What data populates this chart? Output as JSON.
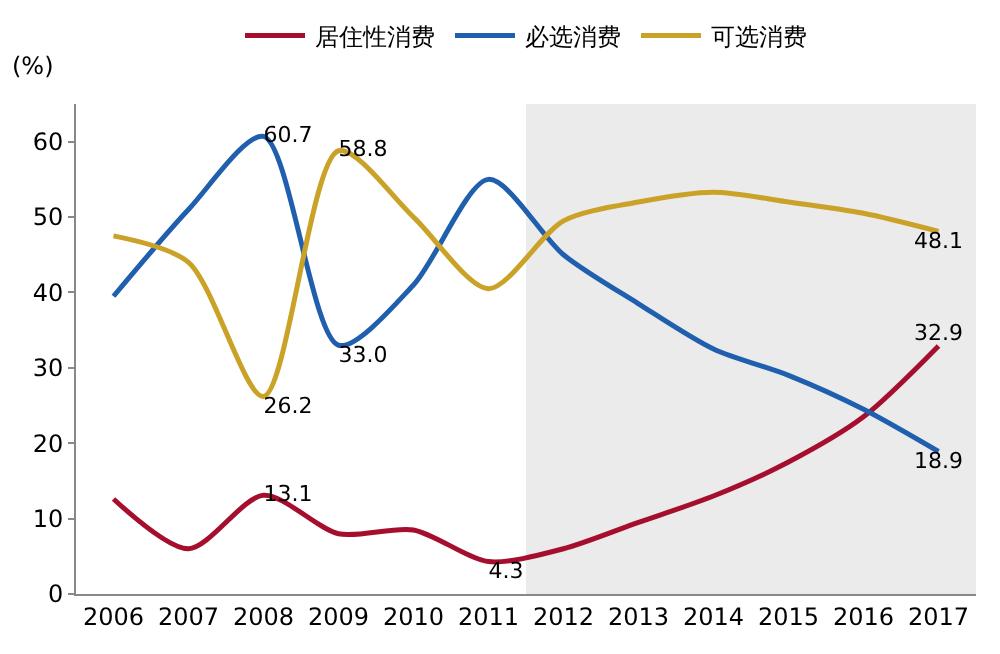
{
  "chart_data": {
    "type": "line",
    "ylabel": "(%)",
    "categories": [
      "2006",
      "2007",
      "2008",
      "2009",
      "2010",
      "2011",
      "2012",
      "2013",
      "2014",
      "2015",
      "2016",
      "2017"
    ],
    "series": [
      {
        "name": "居住性消费",
        "color": "#a50f2d",
        "values": [
          12.6,
          6.0,
          13.1,
          8.0,
          8.5,
          4.3,
          6.0,
          9.5,
          13.0,
          17.5,
          23.5,
          32.9
        ],
        "value_labels": [
          null,
          null,
          "13.1",
          null,
          null,
          "4.3",
          null,
          null,
          null,
          null,
          null,
          "32.9"
        ]
      },
      {
        "name": "必选消费",
        "color": "#1f5fad",
        "values": [
          39.5,
          51,
          60.7,
          33.0,
          41,
          55,
          45,
          38.5,
          32.5,
          29,
          24.5,
          18.9
        ],
        "value_labels": [
          null,
          null,
          "60.7",
          "33.0",
          null,
          null,
          null,
          null,
          null,
          null,
          null,
          "18.9"
        ]
      },
      {
        "name": "可选消费",
        "color": "#c9a227",
        "values": [
          47.5,
          44,
          26.2,
          58.8,
          50,
          40.5,
          49.5,
          52,
          53.3,
          52,
          50.5,
          48.1
        ],
        "value_labels": [
          null,
          null,
          "26.2",
          "58.8",
          null,
          null,
          null,
          null,
          null,
          null,
          null,
          "48.1"
        ]
      }
    ],
    "ylim": [
      0,
      65
    ],
    "yticks": [
      0,
      10,
      20,
      30,
      40,
      50,
      60
    ],
    "bands": [
      {
        "axis": "x",
        "from": "2012",
        "to": "2017",
        "color": "#ebebeb"
      }
    ],
    "grid": false,
    "legend": "top",
    "marker": "none",
    "line_style": "solid"
  }
}
